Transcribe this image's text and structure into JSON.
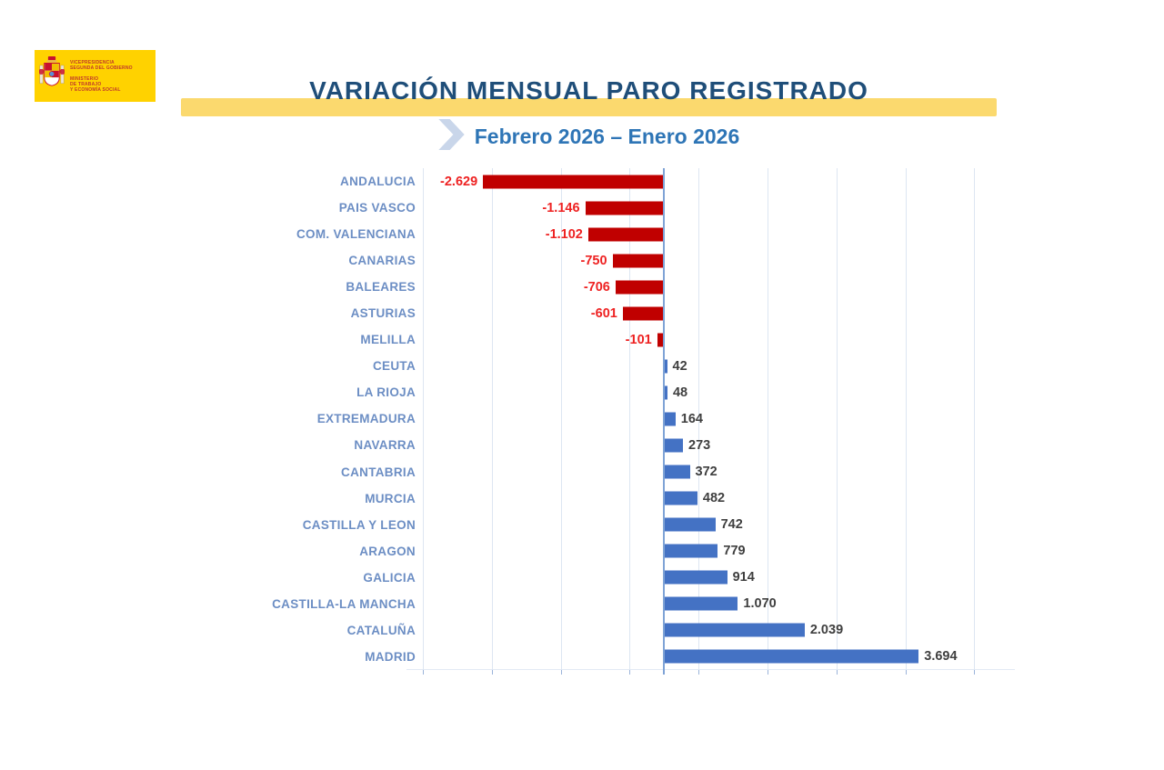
{
  "logo": {
    "bg_color": "#FFD200",
    "text_color": "#C0392B",
    "block1": {
      "l1": "VICEPRESIDENCIA",
      "l2": "SEGUNDA DEL GOBIERNO"
    },
    "block2": {
      "l1": "MINISTERIO",
      "l2": "DE TRABAJO",
      "l3": "Y ECONOMÍA SOCIAL"
    }
  },
  "header": {
    "title": "VARIACIÓN MENSUAL PARO REGISTRADO",
    "subtitle": "Febrero 2026 – Enero 2026",
    "title_color": "#1F4E79",
    "subtitle_color": "#2E75B6",
    "band_color": "#FBD96E",
    "chevron_color": "#C9D6EA"
  },
  "chart_data": {
    "type": "bar",
    "orientation": "horizontal",
    "title": "VARIACIÓN MENSUAL PARO REGISTRADO",
    "subtitle": "Febrero 2026 – Enero 2026",
    "categories": [
      "ANDALUCIA",
      "PAIS VASCO",
      "COM. VALENCIANA",
      "CANARIAS",
      "BALEARES",
      "ASTURIAS",
      "MELILLA",
      "CEUTA",
      "LA RIOJA",
      "EXTREMADURA",
      "NAVARRA",
      "CANTABRIA",
      "MURCIA",
      "CASTILLA Y LEON",
      "ARAGON",
      "GALICIA",
      "CASTILLA-LA MANCHA",
      "CATALUÑA",
      "MADRID"
    ],
    "values": [
      -2629,
      -1146,
      -1102,
      -750,
      -706,
      -601,
      -101,
      42,
      48,
      164,
      273,
      372,
      482,
      742,
      779,
      914,
      1070,
      2039,
      3694
    ],
    "value_labels": [
      "-2.629",
      "-1.146",
      "-1.102",
      "-750",
      "-706",
      "-601",
      "-101",
      "42",
      "48",
      "164",
      "273",
      "372",
      "482",
      "742",
      "779",
      "914",
      "1.070",
      "2.039",
      "3.694"
    ],
    "xlim": [
      -3700,
      5050
    ],
    "gridlines": [
      -3500,
      -2500,
      -1500,
      -500,
      500,
      1500,
      2500,
      3500,
      4500
    ],
    "grid": true,
    "axis_tick_labels_visible": false,
    "legend": "none",
    "colors": {
      "negative_bar": "#C00000",
      "positive_bar": "#4472C4",
      "negative_value_label": "#EE2222",
      "positive_value_label": "#3F3F3F",
      "category_label": "#6C8EC4",
      "gridline": "#DDE6F2",
      "zero_line": "#7FA3D6"
    }
  }
}
